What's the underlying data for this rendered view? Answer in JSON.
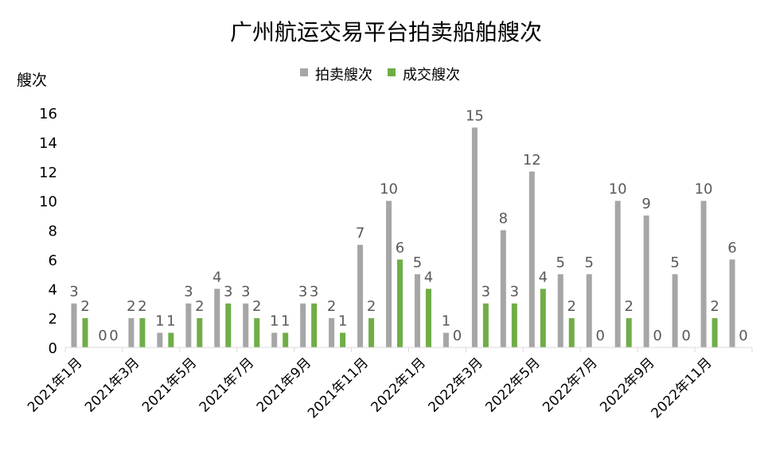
{
  "chart_data": {
    "type": "bar",
    "title": "广州航运交易平台拍卖船舶艘次",
    "ylabel": "艘次",
    "xlabel": "",
    "ylim": [
      0,
      16
    ],
    "yticks": [
      0,
      2,
      4,
      6,
      8,
      10,
      12,
      14,
      16
    ],
    "grid": false,
    "legend_position": "top-center",
    "categories": [
      "2021年1月",
      "2021年2月",
      "2021年3月",
      "2021年4月",
      "2021年5月",
      "2021年6月",
      "2021年7月",
      "2021年8月",
      "2021年9月",
      "2021年10月",
      "2021年11月",
      "2021年12月",
      "2022年1月",
      "2022年2月",
      "2022年3月",
      "2022年4月",
      "2022年5月",
      "2022年6月",
      "2022年7月",
      "2022年8月",
      "2022年9月",
      "2022年10月",
      "2022年11月",
      "2022年12月"
    ],
    "shown_category_labels": [
      "2021年1月",
      "2021年3月",
      "2021年5月",
      "2021年7月",
      "2021年9月",
      "2021年11月",
      "2022年1月",
      "2022年3月",
      "2022年5月",
      "2022年7月",
      "2022年9月",
      "2022年11月"
    ],
    "series": [
      {
        "name": "拍卖艘次",
        "color": "#a6a6a6",
        "values": [
          3,
          0,
          2,
          1,
          3,
          4,
          3,
          1,
          3,
          2,
          7,
          10,
          5,
          1,
          15,
          8,
          12,
          5,
          5,
          10,
          9,
          5,
          10,
          6
        ]
      },
      {
        "name": "成交艘次",
        "color": "#70ad47",
        "values": [
          2,
          0,
          2,
          1,
          2,
          3,
          2,
          1,
          3,
          1,
          2,
          6,
          4,
          0,
          3,
          3,
          4,
          2,
          0,
          2,
          0,
          0,
          2,
          0
        ]
      }
    ]
  }
}
